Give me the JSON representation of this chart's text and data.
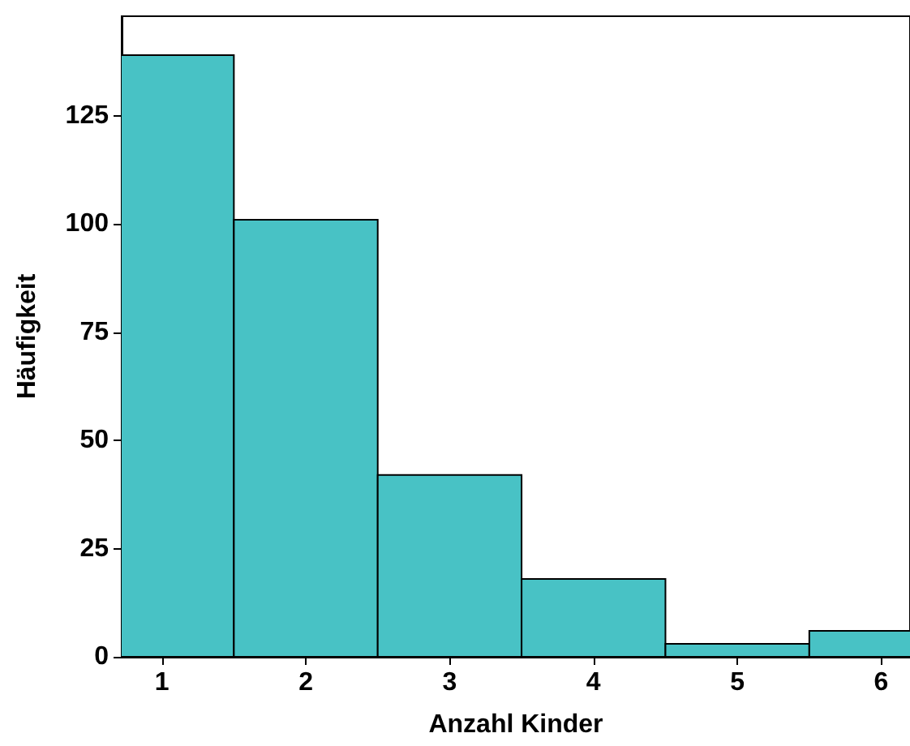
{
  "chart_data": {
    "type": "histogram",
    "xlabel": "Anzahl Kinder",
    "ylabel": "Häufigkeit",
    "bins": [
      0.5,
      1.5,
      2.5,
      3.5,
      4.5,
      5.5,
      6.5
    ],
    "values": [
      139,
      101,
      42,
      18,
      3,
      6
    ],
    "color": "#48c2c5",
    "xlim": [
      0.72,
      6.2
    ],
    "xticks": [
      1,
      2,
      3,
      4,
      5,
      6
    ],
    "ylim": [
      0,
      148
    ],
    "yticks": [
      0,
      25,
      50,
      75,
      100,
      125
    ],
    "grid": false
  }
}
